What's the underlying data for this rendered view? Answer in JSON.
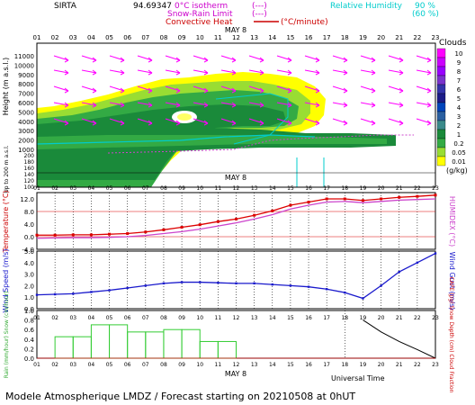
{
  "header": {
    "station": "SIRTA",
    "coords": "94.69347",
    "legend_left": [
      {
        "label": "0°C isotherm",
        "sample": "(---)",
        "color": "#cc00cc"
      },
      {
        "label": "Snow-Rain Limit",
        "sample": "(---)",
        "color": "#cc00cc"
      },
      {
        "label": "Convective Heat",
        "sample": "(°C/minute)",
        "color": "#cc0000"
      }
    ],
    "legend_right": [
      {
        "label": "Relative Humidity",
        "value": "90 %",
        "color": "#00cccc"
      },
      {
        "label": "",
        "value": "(60 %)",
        "color": "#00cccc"
      }
    ]
  },
  "footer": {
    "text": "Modele Atmospherique LMDZ / Forecast starting on 20210508 at 0hUT",
    "universal_time": "Universal Time"
  },
  "hours": [
    "01",
    "02",
    "03",
    "04",
    "05",
    "06",
    "07",
    "08",
    "09",
    "10",
    "11",
    "12",
    "13",
    "14",
    "15",
    "16",
    "17",
    "18",
    "19",
    "20",
    "21",
    "22",
    "23"
  ],
  "date_label": "MAY 8",
  "clouds_legend": {
    "title": "Clouds",
    "unit": "(g/kg)",
    "levels": [
      "10",
      "9",
      "8",
      "7",
      "6",
      "5",
      "4",
      "3",
      "2",
      "1",
      "0.2",
      "0.05",
      "0.01"
    ],
    "colors": [
      "#ff00ff",
      "#cc00ff",
      "#9900ff",
      "#7a33cc",
      "#3333aa",
      "#1c1c88",
      "#0044bb",
      "#2a5fa0",
      "#3a8a8a",
      "#1a8a3a",
      "#33aa44",
      "#99dd33",
      "#ffff00"
    ]
  },
  "chart_data": [
    {
      "type": "heatmap",
      "title": "",
      "ylabel": "Height (m a.s.l.)",
      "ylabel2": "Up to 200 m a.s.l.",
      "upper_ticks": [
        11000,
        10000,
        9000,
        8000,
        7000,
        6000,
        5000,
        4000,
        3000,
        2000,
        1000
      ],
      "lower_ticks": [
        200,
        180,
        160,
        140,
        120,
        100
      ],
      "x": [
        "01",
        "02",
        "03",
        "04",
        "05",
        "06",
        "07",
        "08",
        "09",
        "10",
        "11",
        "12",
        "13",
        "14",
        "15",
        "16",
        "17",
        "18",
        "19",
        "20",
        "21",
        "22",
        "23"
      ],
      "variable": "cloud water (g/kg)"
    },
    {
      "type": "line",
      "title": "",
      "ylabel": "Temperature (°C)",
      "ylabel2": "HUMIDEX (°C)",
      "ylim": [
        -4,
        14
      ],
      "yticks": [
        "12.0",
        "8.0",
        "4.0",
        "0.0",
        "-4.0"
      ],
      "x": [
        "01",
        "02",
        "03",
        "04",
        "05",
        "06",
        "07",
        "08",
        "09",
        "10",
        "11",
        "12",
        "13",
        "14",
        "15",
        "16",
        "17",
        "18",
        "19",
        "20",
        "21",
        "22",
        "23"
      ],
      "series": [
        {
          "name": "Temperature",
          "color": "#dd0000",
          "values": [
            0.5,
            0.5,
            0.6,
            0.6,
            0.8,
            1.0,
            1.5,
            2.2,
            3.0,
            3.8,
            4.8,
            5.6,
            6.8,
            8.2,
            10.0,
            11.0,
            12.0,
            12.0,
            11.5,
            12.0,
            12.5,
            12.8,
            13.2
          ]
        },
        {
          "name": "Humidex",
          "color": "#cc44cc",
          "values": [
            -0.5,
            -0.4,
            -0.3,
            -0.3,
            -0.2,
            0.0,
            0.4,
            1.0,
            1.6,
            2.4,
            3.4,
            4.4,
            5.6,
            7.0,
            8.8,
            10.0,
            11.0,
            11.2,
            10.8,
            11.2,
            11.6,
            11.8,
            12.0
          ]
        }
      ]
    },
    {
      "type": "line",
      "title": "",
      "ylabel": "Wind Speed (m/s)",
      "ylabel2": "Wind Gust (m/s)",
      "ylim": [
        0,
        5
      ],
      "yticks": [
        "5.0",
        "4.0",
        "3.0",
        "2.0",
        "1.0",
        "0.0"
      ],
      "x": [
        "01",
        "02",
        "03",
        "04",
        "05",
        "06",
        "07",
        "08",
        "09",
        "10",
        "11",
        "12",
        "13",
        "14",
        "15",
        "16",
        "17",
        "18",
        "19",
        "20",
        "21",
        "22",
        "23"
      ],
      "series": [
        {
          "name": "Wind Speed",
          "color": "#1a1acc",
          "values": [
            1.2,
            1.25,
            1.3,
            1.45,
            1.6,
            1.8,
            2.0,
            2.2,
            2.3,
            2.3,
            2.25,
            2.2,
            2.2,
            2.1,
            2.0,
            1.9,
            1.7,
            1.4,
            0.9,
            2.0,
            3.2,
            4.0,
            4.8
          ]
        }
      ]
    },
    {
      "type": "bar",
      "title": "",
      "ylabel": "Rain (mm/hour) Snow (cm/hour)",
      "ylabel2": "CAPE (J/g) Snow Depth (cm) Cloud Fraction",
      "ylim": [
        0,
        1
      ],
      "yticks": [
        "1.0",
        "0.8",
        "0.6",
        "0.4",
        "0.2",
        "0.0"
      ],
      "x": [
        "01",
        "02",
        "03",
        "04",
        "05",
        "06",
        "07",
        "08",
        "09",
        "10",
        "11",
        "12",
        "13",
        "14",
        "15",
        "16",
        "17",
        "18",
        "19",
        "20",
        "21",
        "22",
        "23"
      ],
      "series": [
        {
          "name": "Rain",
          "color": "#33cc33",
          "values": [
            0,
            0.45,
            0.45,
            0.7,
            0.7,
            0.55,
            0.55,
            0.6,
            0.6,
            0.35,
            0.35,
            0,
            0,
            0,
            0,
            0,
            0,
            0,
            0,
            0,
            0,
            0,
            0
          ]
        },
        {
          "name": "CAPE",
          "color": "#000000",
          "values": [
            0,
            0,
            0,
            0,
            0,
            0,
            0,
            0,
            0,
            0,
            0,
            0,
            0,
            0,
            0,
            0,
            0,
            0,
            0.8,
            0.55,
            0.35,
            0.18,
            0.0
          ]
        }
      ]
    }
  ]
}
